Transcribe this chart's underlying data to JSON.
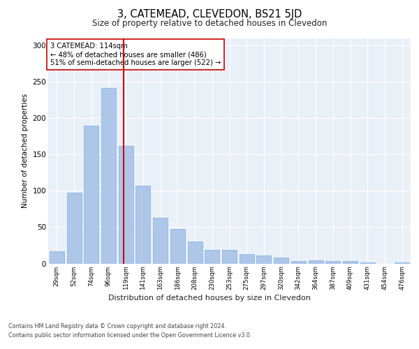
{
  "title": "3, CATEMEAD, CLEVEDON, BS21 5JD",
  "subtitle": "Size of property relative to detached houses in Clevedon",
  "xlabel": "Distribution of detached houses by size in Clevedon",
  "ylabel": "Number of detached properties",
  "categories": [
    "29sqm",
    "52sqm",
    "74sqm",
    "96sqm",
    "119sqm",
    "141sqm",
    "163sqm",
    "186sqm",
    "208sqm",
    "230sqm",
    "253sqm",
    "275sqm",
    "297sqm",
    "320sqm",
    "342sqm",
    "364sqm",
    "387sqm",
    "409sqm",
    "431sqm",
    "454sqm",
    "476sqm"
  ],
  "values": [
    17,
    98,
    190,
    242,
    162,
    107,
    63,
    48,
    30,
    19,
    19,
    13,
    11,
    8,
    3,
    4,
    3,
    3,
    1,
    0,
    1
  ],
  "bar_color": "#aec6e8",
  "bar_edge_color": "#7aafe0",
  "vline_x": 3.87,
  "vline_color": "#cc0000",
  "annotation_text": "3 CATEMEAD: 114sqm\n← 48% of detached houses are smaller (486)\n51% of semi-detached houses are larger (522) →",
  "annotation_box_color": "#ffffff",
  "annotation_box_edge": "#cc0000",
  "ylim": [
    0,
    310
  ],
  "yticks": [
    0,
    50,
    100,
    150,
    200,
    250,
    300
  ],
  "background_color": "#eaf0f8",
  "footer_line1": "Contains HM Land Registry data © Crown copyright and database right 2024.",
  "footer_line2": "Contains public sector information licensed under the Open Government Licence v3.0."
}
